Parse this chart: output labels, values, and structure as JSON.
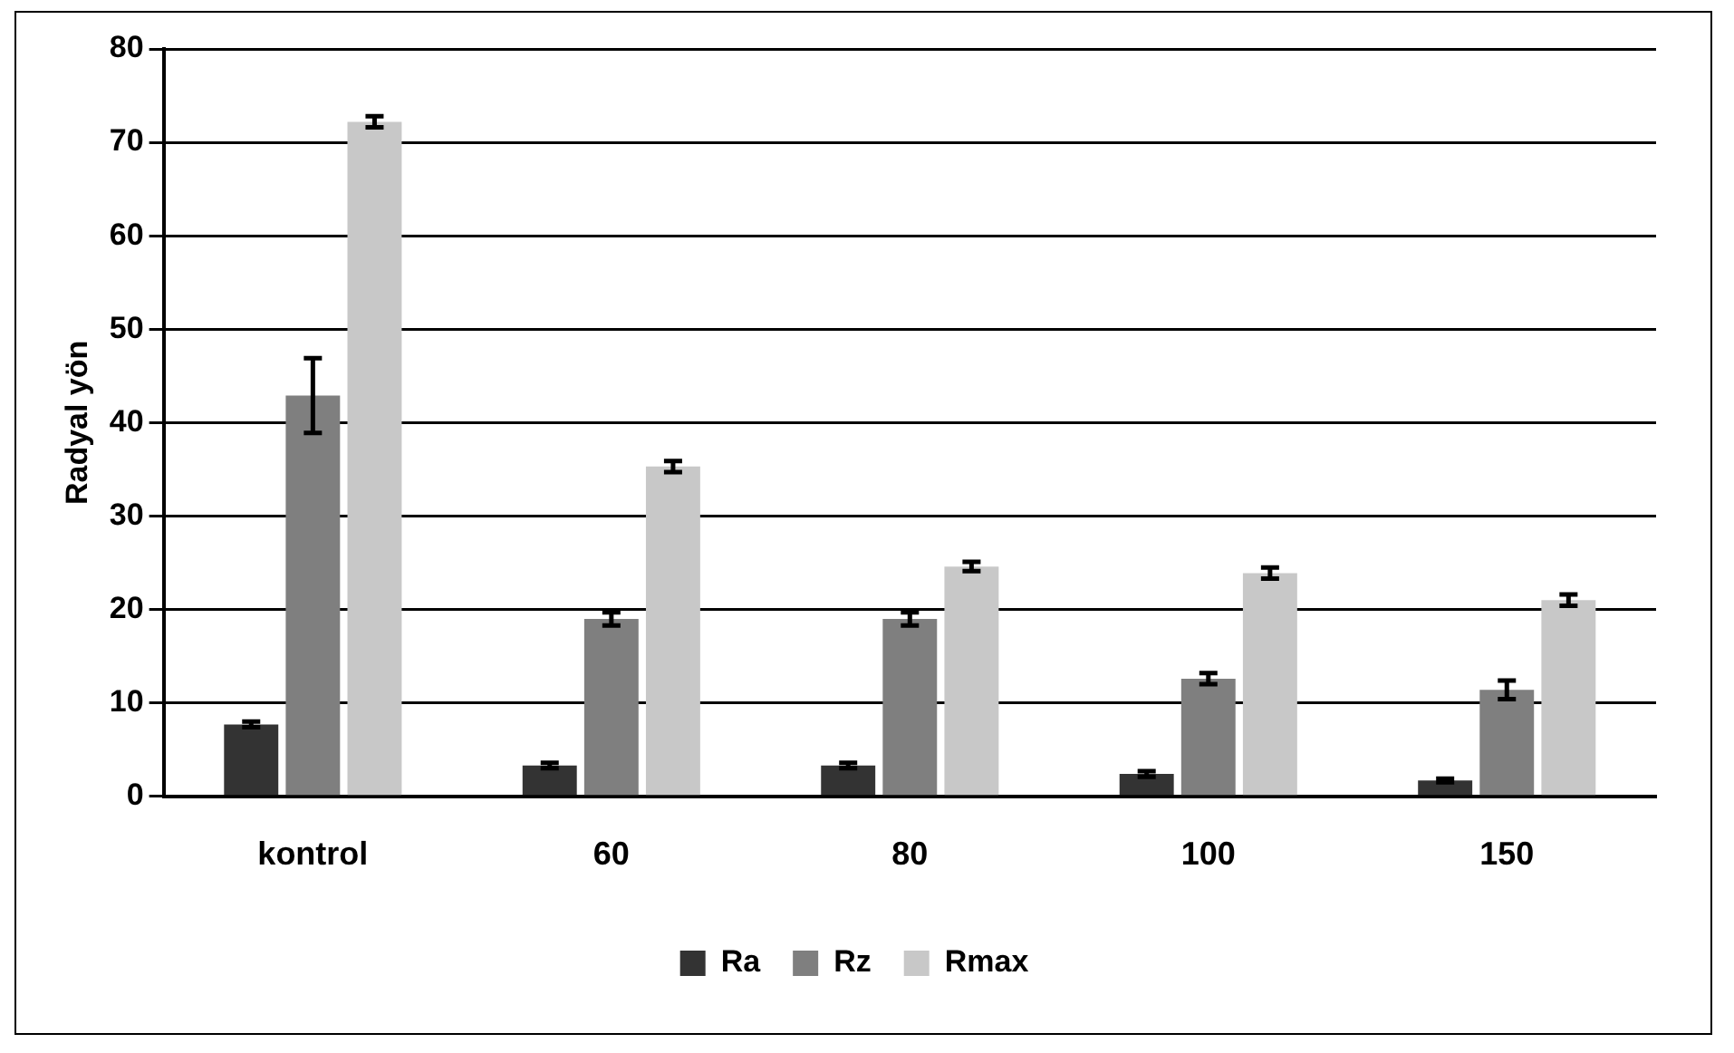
{
  "chart_data": {
    "type": "bar",
    "ylabel": "Radyal yön",
    "categories": [
      "kontrol",
      "60",
      "80",
      "100",
      "150"
    ],
    "series": [
      {
        "name": "Ra",
        "color": "#333333",
        "values": [
          7.7,
          3.3,
          3.3,
          2.4,
          1.7
        ],
        "errors": [
          0.3,
          0.3,
          0.3,
          0.3,
          0.2
        ]
      },
      {
        "name": "Rz",
        "color": "#7f7f7f",
        "values": [
          42.9,
          19,
          19,
          12.6,
          11.4
        ],
        "errors": [
          4,
          0.7,
          0.7,
          0.6,
          1
        ]
      },
      {
        "name": "Rmax",
        "color": "#c8c8c8",
        "values": [
          72.2,
          35.3,
          24.6,
          23.9,
          21
        ],
        "errors": [
          0.6,
          0.6,
          0.5,
          0.6,
          0.6
        ]
      }
    ],
    "ylim": [
      0,
      80
    ],
    "yticks": [
      0,
      10,
      20,
      30,
      40,
      50,
      60,
      70,
      80
    ],
    "grid": "y",
    "legend": "bottom"
  }
}
